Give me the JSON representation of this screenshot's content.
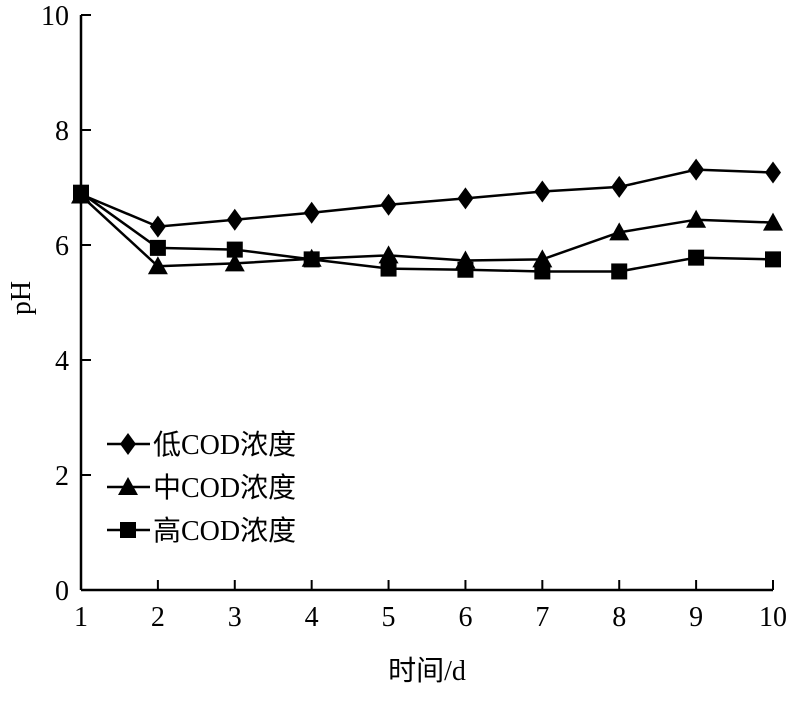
{
  "chart_data": {
    "type": "line",
    "title": "",
    "xlabel": "时间/d",
    "ylabel": "pH",
    "xlim": [
      1,
      10
    ],
    "ylim": [
      0,
      10
    ],
    "x": [
      1,
      2,
      3,
      4,
      5,
      6,
      7,
      8,
      9,
      10
    ],
    "xticks": [
      "1",
      "2",
      "3",
      "4",
      "5",
      "6",
      "7",
      "8",
      "9",
      "10"
    ],
    "yticks": [
      "0",
      "2",
      "4",
      "6",
      "8",
      "10"
    ],
    "grid": false,
    "legend_position": "bottom-left",
    "series": [
      {
        "name": "低COD浓度",
        "marker": "diamond",
        "values": [
          6.88,
          6.32,
          6.44,
          6.56,
          6.7,
          6.81,
          6.93,
          7.01,
          7.31,
          7.26
        ]
      },
      {
        "name": "中COD浓度",
        "marker": "triangle",
        "values": [
          6.86,
          5.63,
          5.68,
          5.76,
          5.82,
          5.73,
          5.75,
          6.22,
          6.44,
          6.39
        ]
      },
      {
        "name": "高COD浓度",
        "marker": "square",
        "values": [
          6.91,
          5.95,
          5.92,
          5.75,
          5.59,
          5.57,
          5.54,
          5.54,
          5.78,
          5.75
        ]
      }
    ]
  }
}
